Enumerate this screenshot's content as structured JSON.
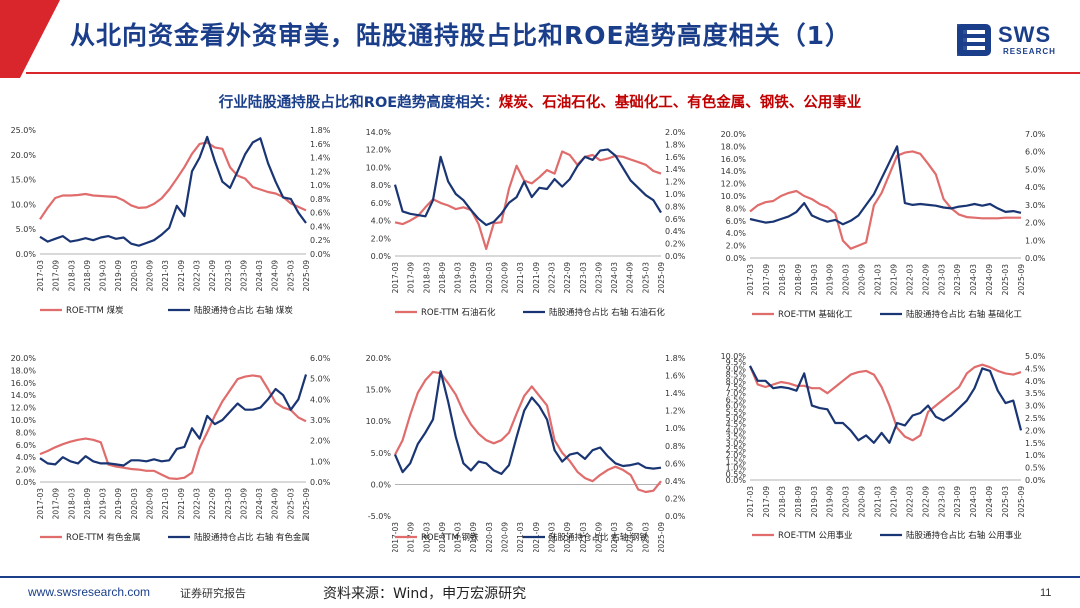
{
  "header": {
    "title": "从北向资金看外资审美，陆股通持股占比和ROE趋势高度相关（1）",
    "logo_name": "SWS",
    "logo_sub": "RESEARCH"
  },
  "subtitle": {
    "lead": "行业陆股通持股占比和ROE趋势高度相关：",
    "highlight": "煤炭、石油石化、基础化工、有色金属、钢铁、公用事业"
  },
  "colors": {
    "roe": "#e06c6c",
    "hold": "#1a3573",
    "brand": "#1a3e8a",
    "accent": "#d9262c"
  },
  "x_ticks": [
    "2017-03",
    "2017-09",
    "2018-03",
    "2018-09",
    "2019-03",
    "2019-09",
    "2020-03",
    "2020-09",
    "2021-03",
    "2021-09",
    "2022-03",
    "2022-09",
    "2023-03",
    "2023-09",
    "2024-03",
    "2024-09",
    "2025-03",
    "2025-09"
  ],
  "chart_data": [
    {
      "type": "line",
      "industry": "煤炭",
      "legend": [
        "ROE-TTM 煤炭",
        "陆股通持仓占比 右轴 煤炭"
      ],
      "left_axis": {
        "min": 0,
        "max": 25,
        "step": 5,
        "decimals": 1,
        "percent": true
      },
      "right_axis": {
        "min": 0,
        "max": 1.8,
        "step": 0.2,
        "decimals": 1,
        "percent": true
      },
      "series": [
        {
          "name": "ROE-TTM 煤炭",
          "axis": "left",
          "values": [
            7,
            9.3,
            11.3,
            11.8,
            11.8,
            11.9,
            12.1,
            11.8,
            11.7,
            11.6,
            11.5,
            10.8,
            9.8,
            9.3,
            9.4,
            10.1,
            11.2,
            13,
            15.2,
            17.5,
            20.2,
            22.2,
            22.5,
            21.5,
            21.2,
            17.5,
            15.8,
            15.2,
            13.5,
            13,
            12.5,
            12.2,
            11.5,
            10.2,
            9.5,
            8.8
          ]
        },
        {
          "name": "陆股通持仓占比 右轴 煤炭",
          "axis": "right",
          "values": [
            0.25,
            0.18,
            0.22,
            0.26,
            0.18,
            0.2,
            0.23,
            0.2,
            0.24,
            0.26,
            0.22,
            0.24,
            0.15,
            0.12,
            0.16,
            0.2,
            0.28,
            0.38,
            0.7,
            0.55,
            1.2,
            1.4,
            1.7,
            1.35,
            1.05,
            0.96,
            1.2,
            1.45,
            1.62,
            1.68,
            1.32,
            1.05,
            0.82,
            0.8,
            0.6,
            0.45
          ]
        }
      ]
    },
    {
      "type": "line",
      "industry": "石油石化",
      "legend": [
        "ROE-TTM 石油石化",
        "陆股通持仓占比 右轴 石油石化"
      ],
      "left_axis": {
        "min": 0,
        "max": 14,
        "step": 2,
        "decimals": 1,
        "percent": true
      },
      "right_axis": {
        "min": 0,
        "max": 2.0,
        "step": 0.2,
        "decimals": 1,
        "percent": true
      },
      "series": [
        {
          "name": "ROE-TTM 石油石化",
          "axis": "left",
          "values": [
            3.8,
            3.6,
            4,
            4.5,
            5.5,
            6.4,
            6,
            5.7,
            5.3,
            5.5,
            5.2,
            3.6,
            0.8,
            3.7,
            3.8,
            7.6,
            10.2,
            8.5,
            8.2,
            8.9,
            9.7,
            9.3,
            11.8,
            11.4,
            10.3,
            11.2,
            11.4,
            10.8,
            11,
            11.3,
            11.2,
            10.9,
            10.6,
            10.3,
            9.6,
            9.3
          ]
        },
        {
          "name": "陆股通持仓占比 右轴 石油石化",
          "axis": "right",
          "values": [
            1.15,
            0.72,
            0.68,
            0.66,
            0.64,
            0.9,
            1.6,
            1.2,
            1.0,
            0.9,
            0.74,
            0.6,
            0.5,
            0.55,
            0.68,
            0.86,
            0.95,
            1.2,
            0.95,
            1.1,
            1.08,
            1.24,
            1.12,
            1.24,
            1.45,
            1.6,
            1.55,
            1.7,
            1.72,
            1.62,
            1.42,
            1.22,
            1.1,
            0.98,
            0.9,
            0.7
          ]
        }
      ]
    },
    {
      "type": "line",
      "industry": "基础化工",
      "legend": [
        "ROE-TTM 基础化工",
        "陆股通持仓占比 右轴 基础化工"
      ],
      "left_axis": {
        "min": 0,
        "max": 20,
        "step": 2,
        "decimals": 1,
        "percent": true
      },
      "right_axis": {
        "min": 0,
        "max": 7,
        "step": 1,
        "decimals": 1,
        "percent": true
      },
      "series": [
        {
          "name": "ROE-TTM 基础化工",
          "axis": "left",
          "values": [
            7.5,
            8.5,
            9,
            9.2,
            10,
            10.5,
            10.8,
            10,
            9.5,
            8.7,
            8.2,
            7.2,
            2.8,
            1.5,
            2,
            2.5,
            8.5,
            10.5,
            13.5,
            16.5,
            17,
            17.2,
            16.8,
            15.2,
            13.5,
            9.5,
            8,
            7,
            6.6,
            6.5,
            6.4,
            6.4,
            6.4,
            6.5,
            6.5,
            6.5
          ]
        },
        {
          "name": "陆股通持仓占比 右轴 基础化工",
          "axis": "right",
          "values": [
            2.2,
            2.1,
            2.0,
            2.05,
            2.2,
            2.35,
            2.6,
            3.1,
            2.4,
            2.2,
            2.05,
            2.15,
            1.9,
            2.1,
            2.4,
            3,
            3.6,
            4.5,
            5.4,
            6.3,
            3.1,
            3,
            3.05,
            3,
            2.95,
            2.85,
            2.8,
            2.9,
            2.95,
            3.05,
            2.95,
            3.05,
            2.8,
            2.6,
            2.65,
            2.55
          ]
        }
      ]
    },
    {
      "type": "line",
      "industry": "有色金属",
      "legend": [
        "ROE-TTM 有色金属",
        "陆股通持仓占比 右轴 有色金属"
      ],
      "left_axis": {
        "min": 0,
        "max": 20,
        "step": 2,
        "decimals": 1,
        "percent": true
      },
      "right_axis": {
        "min": 0,
        "max": 6,
        "step": 1,
        "decimals": 1,
        "percent": true
      },
      "series": [
        {
          "name": "ROE-TTM 有色金属",
          "axis": "left",
          "values": [
            4.5,
            5,
            5.6,
            6.1,
            6.5,
            6.8,
            7,
            6.8,
            6.4,
            2.8,
            2.5,
            2.3,
            2.1,
            2,
            1.8,
            1.8,
            1.2,
            0.6,
            0.5,
            0.7,
            1.5,
            5.5,
            8,
            10.7,
            13,
            14.8,
            16.6,
            17,
            17.2,
            17,
            15,
            12.8,
            12,
            11.6,
            10.4,
            9.8
          ]
        },
        {
          "name": "陆股通持仓占比 右轴 有色金属",
          "axis": "right",
          "values": [
            1.15,
            0.9,
            0.85,
            1.2,
            1.0,
            0.9,
            1.25,
            1.0,
            0.9,
            0.9,
            0.85,
            0.8,
            1.05,
            1.05,
            1.0,
            1.1,
            1.0,
            1.05,
            1.6,
            1.7,
            2.6,
            2.1,
            3.2,
            2.8,
            3.0,
            3.4,
            3.8,
            3.5,
            3.5,
            3.6,
            4.0,
            4.5,
            4.2,
            3.5,
            4.0,
            5.2
          ]
        }
      ]
    },
    {
      "type": "line",
      "industry": "钢铁",
      "legend": [
        "ROE-TTM 钢铁",
        "陆股通持仓占比 右轴 钢铁"
      ],
      "left_axis": {
        "min": -5,
        "max": 20,
        "step": 5,
        "decimals": 1,
        "percent": true
      },
      "right_axis": {
        "min": 0,
        "max": 1.8,
        "step": 0.2,
        "decimals": 1,
        "percent": true
      },
      "series": [
        {
          "name": "ROE-TTM 钢铁",
          "axis": "left",
          "values": [
            4.7,
            7,
            11,
            14.5,
            16.5,
            17.8,
            17.6,
            16,
            14.2,
            11.5,
            9.5,
            8,
            7,
            6.5,
            7,
            8.2,
            11.2,
            14,
            15.5,
            14,
            12.5,
            7,
            5,
            3.7,
            2,
            1,
            0.5,
            1.5,
            2.3,
            2.8,
            2.3,
            1.5,
            -0.8,
            -1.2,
            -1,
            0.5
          ]
        },
        {
          "name": "陆股通持仓占比 右轴 钢铁",
          "axis": "right",
          "values": [
            0.7,
            0.5,
            0.6,
            0.82,
            0.95,
            1.1,
            1.65,
            1.3,
            0.9,
            0.6,
            0.52,
            0.62,
            0.6,
            0.52,
            0.48,
            0.58,
            0.9,
            1.2,
            1.35,
            1.25,
            1.1,
            0.75,
            0.62,
            0.7,
            0.72,
            0.65,
            0.75,
            0.78,
            0.68,
            0.6,
            0.57,
            0.58,
            0.6,
            0.55,
            0.54,
            0.55
          ]
        }
      ]
    },
    {
      "type": "line",
      "industry": "公用事业",
      "legend": [
        "ROE-TTM 公用事业",
        "陆股通持仓占比 右轴 公用事业"
      ],
      "left_axis": {
        "min": 0,
        "max": 10,
        "step": 0.5,
        "decimals": 1,
        "percent": true
      },
      "right_axis": {
        "min": 0,
        "max": 5,
        "step": 0.5,
        "decimals": 1,
        "percent": true
      },
      "series": [
        {
          "name": "ROE-TTM 公用事业",
          "axis": "left",
          "values": [
            9.2,
            7.7,
            7.5,
            7.7,
            7.9,
            7.8,
            7.6,
            7.6,
            7.4,
            7.4,
            7.0,
            7.5,
            8.0,
            8.5,
            8.7,
            8.8,
            8.5,
            7.5,
            6.0,
            4.2,
            3.5,
            3.2,
            3.6,
            5.5,
            6.0,
            6.5,
            7.0,
            7.5,
            8.6,
            9.1,
            9.3,
            9.1,
            8.8,
            8.6,
            8.5,
            8.7
          ]
        },
        {
          "name": "陆股通持仓占比 右轴 公用事业",
          "axis": "right",
          "values": [
            4.6,
            4.0,
            4.0,
            3.7,
            3.75,
            3.7,
            3.6,
            4.3,
            3.0,
            2.9,
            2.85,
            2.3,
            2.3,
            2.0,
            1.6,
            1.8,
            1.5,
            1.9,
            1.5,
            2.3,
            2.2,
            2.6,
            2.7,
            3.0,
            2.55,
            2.4,
            2.6,
            2.9,
            3.2,
            3.7,
            4.5,
            4.4,
            3.6,
            3.1,
            3.2,
            2.0
          ]
        }
      ]
    }
  ],
  "footer": {
    "url": "www.swsresearch.com",
    "doc_type": "证券研究报告",
    "source": "资料来源：Wind，申万宏源研究",
    "page": "11"
  }
}
